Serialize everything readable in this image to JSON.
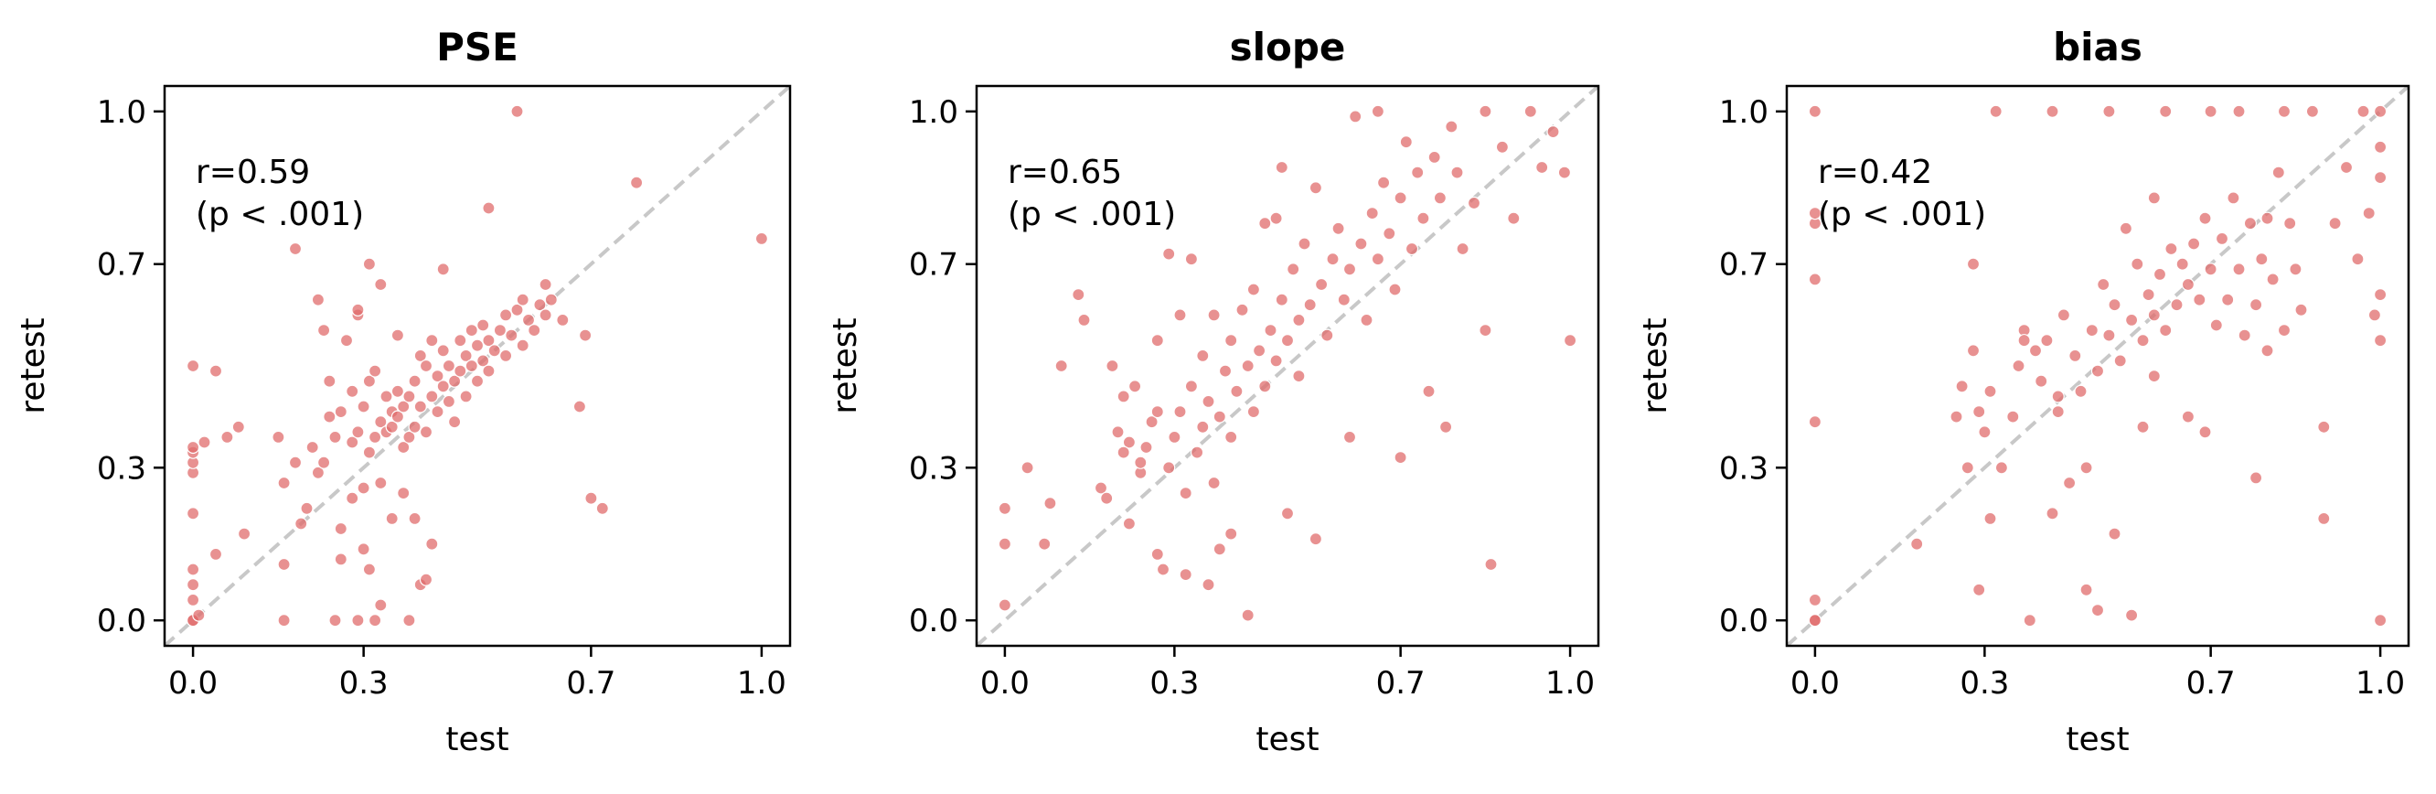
{
  "chart_data": [
    {
      "type": "scatter",
      "title": "PSE",
      "xlabel": "test",
      "ylabel": "retest",
      "xlim": [
        -0.05,
        1.05
      ],
      "ylim": [
        -0.05,
        1.05
      ],
      "ticks": [
        "0.0",
        "0.3",
        "0.7",
        "1.0"
      ],
      "tick_values": [
        0.0,
        0.3,
        0.7,
        1.0
      ],
      "annotation": [
        "r=0.59",
        "(p < .001)"
      ],
      "reference_line": "identity (dashed gray)",
      "point_color": "#e06c6c",
      "seed": 11,
      "corr": 0.59,
      "n": 260,
      "points": [
        [
          0.0,
          0.0
        ],
        [
          0.0,
          0.0
        ],
        [
          0.0,
          0.04
        ],
        [
          0.0,
          0.07
        ],
        [
          0.0,
          0.1
        ],
        [
          0.0,
          0.21
        ],
        [
          0.0,
          0.29
        ],
        [
          0.0,
          0.31
        ],
        [
          0.0,
          0.33
        ],
        [
          0.0,
          0.34
        ],
        [
          0.0,
          0.5
        ],
        [
          0.01,
          0.01
        ],
        [
          0.02,
          0.35
        ],
        [
          0.04,
          0.13
        ],
        [
          0.04,
          0.49
        ],
        [
          0.06,
          0.36
        ],
        [
          0.08,
          0.38
        ],
        [
          0.09,
          0.17
        ],
        [
          0.15,
          0.36
        ],
        [
          0.16,
          0.11
        ],
        [
          0.16,
          0.27
        ],
        [
          0.18,
          0.31
        ],
        [
          0.18,
          0.73
        ],
        [
          0.19,
          0.19
        ],
        [
          0.2,
          0.22
        ],
        [
          0.21,
          0.34
        ],
        [
          0.22,
          0.29
        ],
        [
          0.22,
          0.63
        ],
        [
          0.23,
          0.31
        ],
        [
          0.23,
          0.57
        ],
        [
          0.24,
          0.4
        ],
        [
          0.24,
          0.47
        ],
        [
          0.25,
          0.36
        ],
        [
          0.26,
          0.18
        ],
        [
          0.26,
          0.41
        ],
        [
          0.27,
          0.55
        ],
        [
          0.28,
          0.35
        ],
        [
          0.28,
          0.45
        ],
        [
          0.29,
          0.37
        ],
        [
          0.29,
          0.6
        ],
        [
          0.3,
          0.14
        ],
        [
          0.3,
          0.42
        ],
        [
          0.31,
          0.33
        ],
        [
          0.31,
          0.47
        ],
        [
          0.32,
          0.36
        ],
        [
          0.32,
          0.49
        ],
        [
          0.33,
          0.27
        ],
        [
          0.33,
          0.39
        ],
        [
          0.33,
          0.66
        ],
        [
          0.34,
          0.37
        ],
        [
          0.34,
          0.44
        ],
        [
          0.35,
          0.38
        ],
        [
          0.35,
          0.41
        ],
        [
          0.36,
          0.4
        ],
        [
          0.36,
          0.45
        ],
        [
          0.37,
          0.34
        ],
        [
          0.37,
          0.42
        ],
        [
          0.38,
          0.36
        ],
        [
          0.38,
          0.44
        ],
        [
          0.39,
          0.38
        ],
        [
          0.39,
          0.47
        ],
        [
          0.4,
          0.42
        ],
        [
          0.4,
          0.52
        ],
        [
          0.41,
          0.37
        ],
        [
          0.41,
          0.5
        ],
        [
          0.42,
          0.44
        ],
        [
          0.42,
          0.55
        ],
        [
          0.43,
          0.41
        ],
        [
          0.43,
          0.48
        ],
        [
          0.44,
          0.46
        ],
        [
          0.44,
          0.53
        ],
        [
          0.45,
          0.43
        ],
        [
          0.45,
          0.5
        ],
        [
          0.46,
          0.39
        ],
        [
          0.46,
          0.47
        ],
        [
          0.47,
          0.49
        ],
        [
          0.47,
          0.55
        ],
        [
          0.48,
          0.44
        ],
        [
          0.48,
          0.52
        ],
        [
          0.49,
          0.5
        ],
        [
          0.49,
          0.57
        ],
        [
          0.5,
          0.47
        ],
        [
          0.5,
          0.54
        ],
        [
          0.51,
          0.51
        ],
        [
          0.51,
          0.58
        ],
        [
          0.52,
          0.49
        ],
        [
          0.52,
          0.55
        ],
        [
          0.53,
          0.53
        ],
        [
          0.54,
          0.57
        ],
        [
          0.55,
          0.52
        ],
        [
          0.55,
          0.6
        ],
        [
          0.56,
          0.56
        ],
        [
          0.57,
          0.61
        ],
        [
          0.58,
          0.54
        ],
        [
          0.58,
          0.63
        ],
        [
          0.59,
          0.59
        ],
        [
          0.6,
          0.57
        ],
        [
          0.61,
          0.62
        ],
        [
          0.62,
          0.6
        ],
        [
          0.62,
          0.66
        ],
        [
          0.63,
          0.63
        ],
        [
          0.65,
          0.59
        ],
        [
          0.68,
          0.42
        ],
        [
          0.69,
          0.56
        ],
        [
          0.7,
          0.24
        ],
        [
          0.72,
          0.22
        ],
        [
          0.78,
          0.86
        ],
        [
          1.0,
          0.75
        ],
        [
          0.57,
          1.0
        ],
        [
          0.52,
          0.81
        ],
        [
          0.44,
          0.69
        ],
        [
          0.36,
          0.56
        ],
        [
          0.31,
          0.7
        ],
        [
          0.29,
          0.61
        ],
        [
          0.35,
          0.2
        ],
        [
          0.37,
          0.25
        ],
        [
          0.38,
          0.0
        ],
        [
          0.39,
          0.2
        ],
        [
          0.4,
          0.07
        ],
        [
          0.41,
          0.08
        ],
        [
          0.42,
          0.15
        ],
        [
          0.33,
          0.03
        ],
        [
          0.32,
          0.0
        ],
        [
          0.29,
          0.0
        ],
        [
          0.25,
          0.0
        ],
        [
          0.16,
          0.0
        ],
        [
          0.26,
          0.12
        ],
        [
          0.28,
          0.24
        ],
        [
          0.3,
          0.26
        ],
        [
          0.31,
          0.1
        ]
      ]
    },
    {
      "type": "scatter",
      "title": "slope",
      "xlabel": "test",
      "ylabel": "retest",
      "xlim": [
        -0.05,
        1.05
      ],
      "ylim": [
        -0.05,
        1.05
      ],
      "ticks": [
        "0.0",
        "0.3",
        "0.7",
        "1.0"
      ],
      "tick_values": [
        0.0,
        0.3,
        0.7,
        1.0
      ],
      "annotation": [
        "r=0.65",
        "(p < .001)"
      ],
      "reference_line": "identity (dashed gray)",
      "point_color": "#e06c6c",
      "seed": 23,
      "corr": 0.65,
      "n": 240,
      "points": [
        [
          0.0,
          0.15
        ],
        [
          0.0,
          0.22
        ],
        [
          0.0,
          0.03
        ],
        [
          0.04,
          0.3
        ],
        [
          0.07,
          0.15
        ],
        [
          0.08,
          0.23
        ],
        [
          0.1,
          0.5
        ],
        [
          0.13,
          0.64
        ],
        [
          0.14,
          0.59
        ],
        [
          0.17,
          0.26
        ],
        [
          0.18,
          0.24
        ],
        [
          0.19,
          0.5
        ],
        [
          0.2,
          0.37
        ],
        [
          0.21,
          0.44
        ],
        [
          0.22,
          0.35
        ],
        [
          0.23,
          0.46
        ],
        [
          0.24,
          0.29
        ],
        [
          0.25,
          0.34
        ],
        [
          0.26,
          0.39
        ],
        [
          0.27,
          0.55
        ],
        [
          0.27,
          0.13
        ],
        [
          0.28,
          0.1
        ],
        [
          0.29,
          0.3
        ],
        [
          0.3,
          0.36
        ],
        [
          0.31,
          0.41
        ],
        [
          0.31,
          0.6
        ],
        [
          0.32,
          0.25
        ],
        [
          0.33,
          0.46
        ],
        [
          0.33,
          0.71
        ],
        [
          0.34,
          0.33
        ],
        [
          0.35,
          0.38
        ],
        [
          0.35,
          0.52
        ],
        [
          0.36,
          0.43
        ],
        [
          0.37,
          0.27
        ],
        [
          0.37,
          0.6
        ],
        [
          0.38,
          0.4
        ],
        [
          0.39,
          0.49
        ],
        [
          0.4,
          0.36
        ],
        [
          0.4,
          0.55
        ],
        [
          0.41,
          0.45
        ],
        [
          0.42,
          0.61
        ],
        [
          0.43,
          0.5
        ],
        [
          0.44,
          0.41
        ],
        [
          0.44,
          0.65
        ],
        [
          0.45,
          0.53
        ],
        [
          0.46,
          0.46
        ],
        [
          0.46,
          0.78
        ],
        [
          0.47,
          0.57
        ],
        [
          0.48,
          0.51
        ],
        [
          0.49,
          0.63
        ],
        [
          0.49,
          0.89
        ],
        [
          0.5,
          0.55
        ],
        [
          0.51,
          0.69
        ],
        [
          0.52,
          0.59
        ],
        [
          0.52,
          0.48
        ],
        [
          0.53,
          0.74
        ],
        [
          0.54,
          0.62
        ],
        [
          0.55,
          0.85
        ],
        [
          0.56,
          0.66
        ],
        [
          0.57,
          0.56
        ],
        [
          0.58,
          0.71
        ],
        [
          0.59,
          0.77
        ],
        [
          0.6,
          0.63
        ],
        [
          0.61,
          0.69
        ],
        [
          0.62,
          0.99
        ],
        [
          0.63,
          0.74
        ],
        [
          0.64,
          0.59
        ],
        [
          0.65,
          0.8
        ],
        [
          0.66,
          0.71
        ],
        [
          0.67,
          0.86
        ],
        [
          0.68,
          0.76
        ],
        [
          0.69,
          0.65
        ],
        [
          0.7,
          0.83
        ],
        [
          0.71,
          0.94
        ],
        [
          0.72,
          0.73
        ],
        [
          0.73,
          0.88
        ],
        [
          0.74,
          0.79
        ],
        [
          0.75,
          0.45
        ],
        [
          0.76,
          0.91
        ],
        [
          0.77,
          0.83
        ],
        [
          0.78,
          0.38
        ],
        [
          0.79,
          0.97
        ],
        [
          0.8,
          0.88
        ],
        [
          0.81,
          0.73
        ],
        [
          0.83,
          0.82
        ],
        [
          0.85,
          0.57
        ],
        [
          0.86,
          0.11
        ],
        [
          0.88,
          0.93
        ],
        [
          0.9,
          0.79
        ],
        [
          0.93,
          1.0
        ],
        [
          0.95,
          0.89
        ],
        [
          0.97,
          0.96
        ],
        [
          0.99,
          0.88
        ],
        [
          1.0,
          0.55
        ],
        [
          0.36,
          0.07
        ],
        [
          0.4,
          0.17
        ],
        [
          0.43,
          0.01
        ],
        [
          0.38,
          0.14
        ],
        [
          0.32,
          0.09
        ],
        [
          0.24,
          0.31
        ],
        [
          0.22,
          0.19
        ],
        [
          0.5,
          0.21
        ],
        [
          0.55,
          0.16
        ],
        [
          0.61,
          0.36
        ],
        [
          0.7,
          0.32
        ],
        [
          0.85,
          1.0
        ],
        [
          0.66,
          1.0
        ],
        [
          0.48,
          0.79
        ],
        [
          0.29,
          0.72
        ],
        [
          0.27,
          0.41
        ],
        [
          0.21,
          0.33
        ]
      ]
    },
    {
      "type": "scatter",
      "title": "bias",
      "xlabel": "test",
      "ylabel": "retest",
      "xlim": [
        -0.05,
        1.05
      ],
      "ylim": [
        -0.05,
        1.05
      ],
      "ticks": [
        "0.0",
        "0.3",
        "0.7",
        "1.0"
      ],
      "tick_values": [
        0.0,
        0.3,
        0.7,
        1.0
      ],
      "annotation": [
        "r=0.42",
        "(p < .001)"
      ],
      "reference_line": "identity (dashed gray)",
      "point_color": "#e06c6c",
      "seed": 37,
      "corr": 0.42,
      "n": 260,
      "points": [
        [
          0.0,
          0.0
        ],
        [
          0.0,
          0.0
        ],
        [
          0.0,
          0.04
        ],
        [
          0.0,
          0.39
        ],
        [
          0.0,
          0.67
        ],
        [
          0.0,
          0.78
        ],
        [
          0.0,
          0.8
        ],
        [
          0.0,
          1.0
        ],
        [
          0.18,
          0.15
        ],
        [
          0.25,
          0.4
        ],
        [
          0.26,
          0.46
        ],
        [
          0.27,
          0.3
        ],
        [
          0.28,
          0.53
        ],
        [
          0.28,
          0.7
        ],
        [
          0.29,
          0.06
        ],
        [
          0.3,
          0.37
        ],
        [
          0.31,
          0.2
        ],
        [
          0.32,
          1.0
        ],
        [
          0.33,
          0.3
        ],
        [
          0.35,
          0.4
        ],
        [
          0.36,
          0.5
        ],
        [
          0.37,
          0.57
        ],
        [
          0.38,
          0.0
        ],
        [
          0.39,
          0.53
        ],
        [
          0.4,
          0.47
        ],
        [
          0.41,
          0.55
        ],
        [
          0.42,
          1.0
        ],
        [
          0.43,
          0.41
        ],
        [
          0.44,
          0.6
        ],
        [
          0.45,
          0.27
        ],
        [
          0.46,
          0.52
        ],
        [
          0.47,
          0.45
        ],
        [
          0.48,
          0.06
        ],
        [
          0.49,
          0.57
        ],
        [
          0.5,
          0.02
        ],
        [
          0.5,
          0.49
        ],
        [
          0.51,
          0.66
        ],
        [
          0.52,
          0.56
        ],
        [
          0.52,
          1.0
        ],
        [
          0.53,
          0.62
        ],
        [
          0.54,
          0.51
        ],
        [
          0.55,
          0.77
        ],
        [
          0.56,
          0.59
        ],
        [
          0.56,
          0.01
        ],
        [
          0.57,
          0.7
        ],
        [
          0.58,
          0.55
        ],
        [
          0.58,
          0.38
        ],
        [
          0.59,
          0.64
        ],
        [
          0.6,
          0.6
        ],
        [
          0.6,
          0.83
        ],
        [
          0.61,
          0.68
        ],
        [
          0.62,
          0.57
        ],
        [
          0.62,
          1.0
        ],
        [
          0.63,
          0.73
        ],
        [
          0.64,
          0.62
        ],
        [
          0.65,
          0.7
        ],
        [
          0.66,
          0.66
        ],
        [
          0.66,
          0.4
        ],
        [
          0.67,
          0.74
        ],
        [
          0.68,
          0.63
        ],
        [
          0.69,
          0.79
        ],
        [
          0.7,
          0.69
        ],
        [
          0.7,
          1.0
        ],
        [
          0.71,
          0.58
        ],
        [
          0.72,
          0.75
        ],
        [
          0.73,
          0.63
        ],
        [
          0.74,
          0.83
        ],
        [
          0.75,
          0.69
        ],
        [
          0.75,
          1.0
        ],
        [
          0.76,
          0.56
        ],
        [
          0.77,
          0.78
        ],
        [
          0.78,
          0.62
        ],
        [
          0.79,
          0.71
        ],
        [
          0.8,
          0.53
        ],
        [
          0.8,
          0.79
        ],
        [
          0.81,
          0.67
        ],
        [
          0.82,
          0.88
        ],
        [
          0.83,
          0.57
        ],
        [
          0.83,
          1.0
        ],
        [
          0.84,
          0.78
        ],
        [
          0.85,
          0.69
        ],
        [
          0.86,
          0.61
        ],
        [
          0.88,
          1.0
        ],
        [
          0.9,
          0.38
        ],
        [
          0.9,
          0.2
        ],
        [
          0.92,
          0.78
        ],
        [
          0.94,
          0.89
        ],
        [
          0.96,
          0.71
        ],
        [
          0.97,
          1.0
        ],
        [
          0.98,
          0.8
        ],
        [
          0.99,
          0.6
        ],
        [
          1.0,
          0.0
        ],
        [
          1.0,
          0.55
        ],
        [
          1.0,
          0.64
        ],
        [
          1.0,
          0.93
        ],
        [
          1.0,
          1.0
        ],
        [
          1.0,
          0.87
        ],
        [
          0.53,
          0.17
        ],
        [
          0.48,
          0.3
        ],
        [
          0.42,
          0.21
        ],
        [
          0.78,
          0.28
        ],
        [
          0.69,
          0.37
        ],
        [
          0.37,
          0.55
        ],
        [
          0.31,
          0.45
        ],
        [
          0.43,
          0.44
        ],
        [
          0.29,
          0.41
        ],
        [
          0.6,
          0.48
        ]
      ]
    }
  ]
}
